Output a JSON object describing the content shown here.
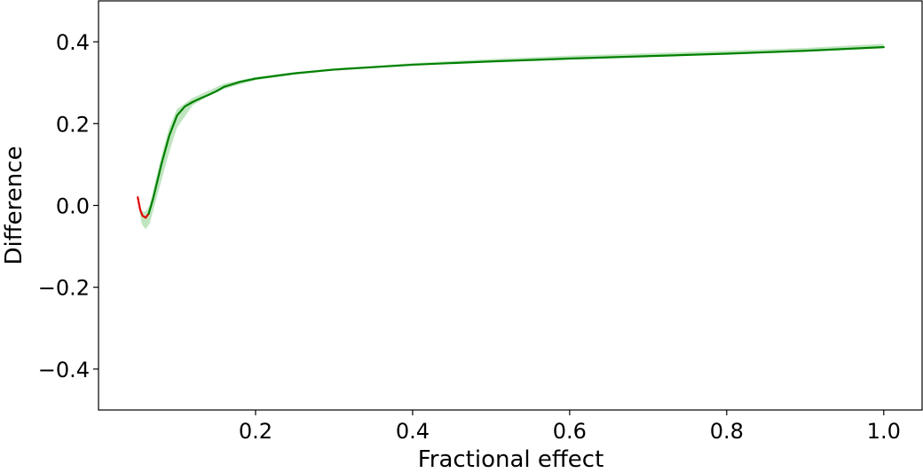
{
  "chart_data": {
    "type": "line",
    "title": "",
    "xlabel": "Fractional effect",
    "ylabel": "Difference",
    "xlim": [
      0.0,
      1.05
    ],
    "ylim": [
      -0.5,
      0.5
    ],
    "x_ticks": [
      0.2,
      0.4,
      0.6,
      0.8,
      1.0
    ],
    "x_tick_labels": [
      "0.2",
      "0.4",
      "0.6",
      "0.8",
      "1.0"
    ],
    "y_ticks": [
      -0.4,
      -0.2,
      0.0,
      0.2,
      0.4
    ],
    "y_tick_labels": [
      "−0.4",
      "−0.2",
      "0.0",
      "0.2",
      "0.4"
    ],
    "grid": false,
    "legend": "none",
    "colors": {
      "negative": "#e00000",
      "positive": "#008000",
      "band": "#a9dca9"
    },
    "band": {
      "x": [
        0.05,
        0.055,
        0.06,
        0.065,
        0.07,
        0.08,
        0.09,
        0.1,
        0.12,
        0.14,
        0.16,
        0.2,
        0.25,
        0.3,
        0.4,
        0.5,
        0.6,
        0.7,
        0.8,
        0.9,
        1.0
      ],
      "lower": [
        0.01,
        -0.045,
        -0.058,
        -0.045,
        -0.01,
        0.06,
        0.13,
        0.19,
        0.245,
        0.268,
        0.285,
        0.306,
        0.32,
        0.33,
        0.343,
        0.352,
        0.359,
        0.365,
        0.371,
        0.377,
        0.385
      ],
      "upper": [
        0.02,
        -0.015,
        -0.015,
        0.0,
        0.04,
        0.12,
        0.19,
        0.236,
        0.263,
        0.28,
        0.298,
        0.314,
        0.326,
        0.335,
        0.348,
        0.358,
        0.366,
        0.372,
        0.378,
        0.385,
        0.395
      ]
    },
    "series": [
      {
        "x": [
          0.05,
          0.053,
          0.056,
          0.06,
          0.064
        ],
        "y": [
          0.02,
          -0.01,
          -0.025,
          -0.03,
          -0.02
        ]
      },
      {
        "x": [
          0.064,
          0.07,
          0.075,
          0.08,
          0.09,
          0.1,
          0.11,
          0.12,
          0.13,
          0.14,
          0.15,
          0.16,
          0.18,
          0.2,
          0.25,
          0.3,
          0.35,
          0.4,
          0.5,
          0.6,
          0.7,
          0.8,
          0.9,
          1.0
        ],
        "y": [
          -0.02,
          0.02,
          0.06,
          0.1,
          0.17,
          0.22,
          0.242,
          0.253,
          0.262,
          0.27,
          0.279,
          0.29,
          0.302,
          0.31,
          0.323,
          0.332,
          0.338,
          0.344,
          0.352,
          0.359,
          0.365,
          0.371,
          0.378,
          0.387
        ]
      }
    ]
  }
}
